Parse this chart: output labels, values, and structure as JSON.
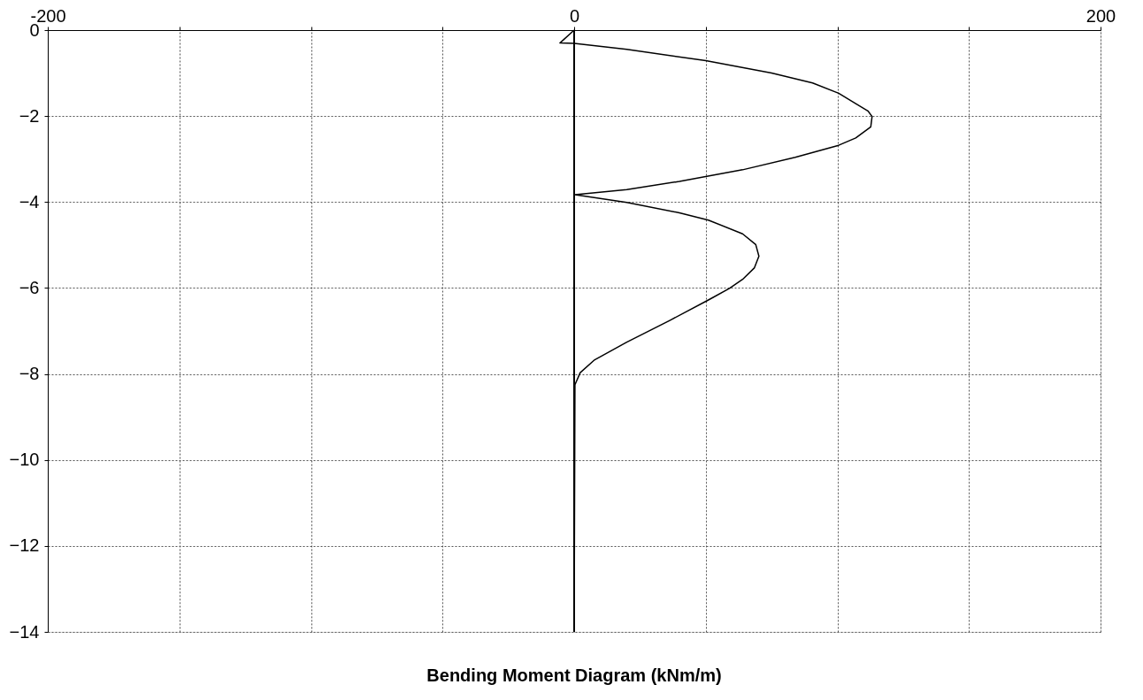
{
  "chart_data": {
    "type": "line",
    "xlabel": "Bending Moment Diagram (kNm/m)",
    "series": [
      {
        "color": "#000000",
        "x": [
          0,
          -5.4,
          0,
          20,
          50,
          75,
          90.6,
          100.5,
          107,
          111.6,
          113.2,
          112.7,
          107,
          100.5,
          84,
          64,
          40,
          20,
          0.3,
          20,
          40,
          51,
          64,
          69,
          70.2,
          68.5,
          64,
          59,
          51,
          36.5,
          20,
          7.8,
          2.3,
          0.3,
          0
        ],
        "values": [
          0,
          -0.3,
          -0.31,
          -0.45,
          -0.71,
          -1.0,
          -1.23,
          -1.47,
          -1.71,
          -1.88,
          -2.01,
          -2.25,
          -2.51,
          -2.68,
          -2.96,
          -3.25,
          -3.52,
          -3.71,
          -3.83,
          -4.01,
          -4.25,
          -4.42,
          -4.74,
          -4.99,
          -5.26,
          -5.53,
          -5.8,
          -6.01,
          -6.28,
          -6.75,
          -7.26,
          -7.67,
          -7.97,
          -8.25,
          -14
        ]
      }
    ],
    "xlim": [
      -200,
      200
    ],
    "xticks": [
      -200,
      {
        "value": -150,
        "label": null
      },
      {
        "value": -100,
        "label": null
      },
      {
        "value": -50,
        "label": null
      },
      0,
      {
        "value": 50,
        "label": null
      },
      {
        "value": 100,
        "label": null
      },
      {
        "value": 150,
        "label": null
      },
      200
    ],
    "ylim": [
      -14,
      0
    ],
    "yticks": [
      -14,
      -12,
      -10,
      -8,
      -6,
      -4,
      -2,
      0
    ],
    "ref_lines": [
      {
        "axis": "x",
        "value": 0,
        "label": null,
        "color": "#000000"
      }
    ],
    "grid": true,
    "marker": "none",
    "line_style": "solid"
  }
}
